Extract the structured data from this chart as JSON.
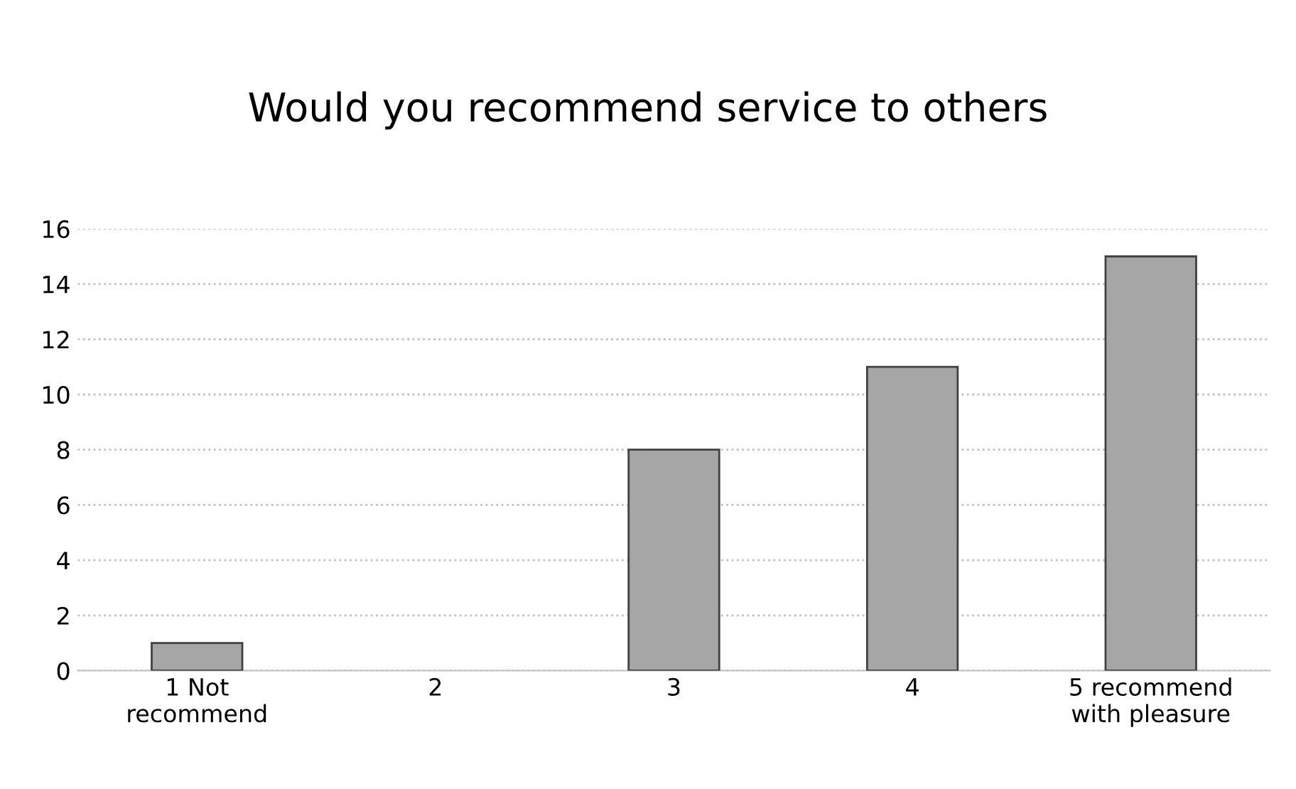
{
  "chart_data": {
    "type": "bar",
    "title": "Would you recommend service to others",
    "categories": [
      "1 Not\nrecommend",
      "2",
      "3",
      "4",
      "5 recommend\nwith pleasure"
    ],
    "values": [
      1,
      0,
      8,
      11,
      15
    ],
    "color": "#a6a6a6",
    "ylim": [
      0,
      16
    ],
    "yticks": [
      0,
      2,
      4,
      6,
      8,
      10,
      12,
      14,
      16
    ],
    "grid": "y"
  }
}
